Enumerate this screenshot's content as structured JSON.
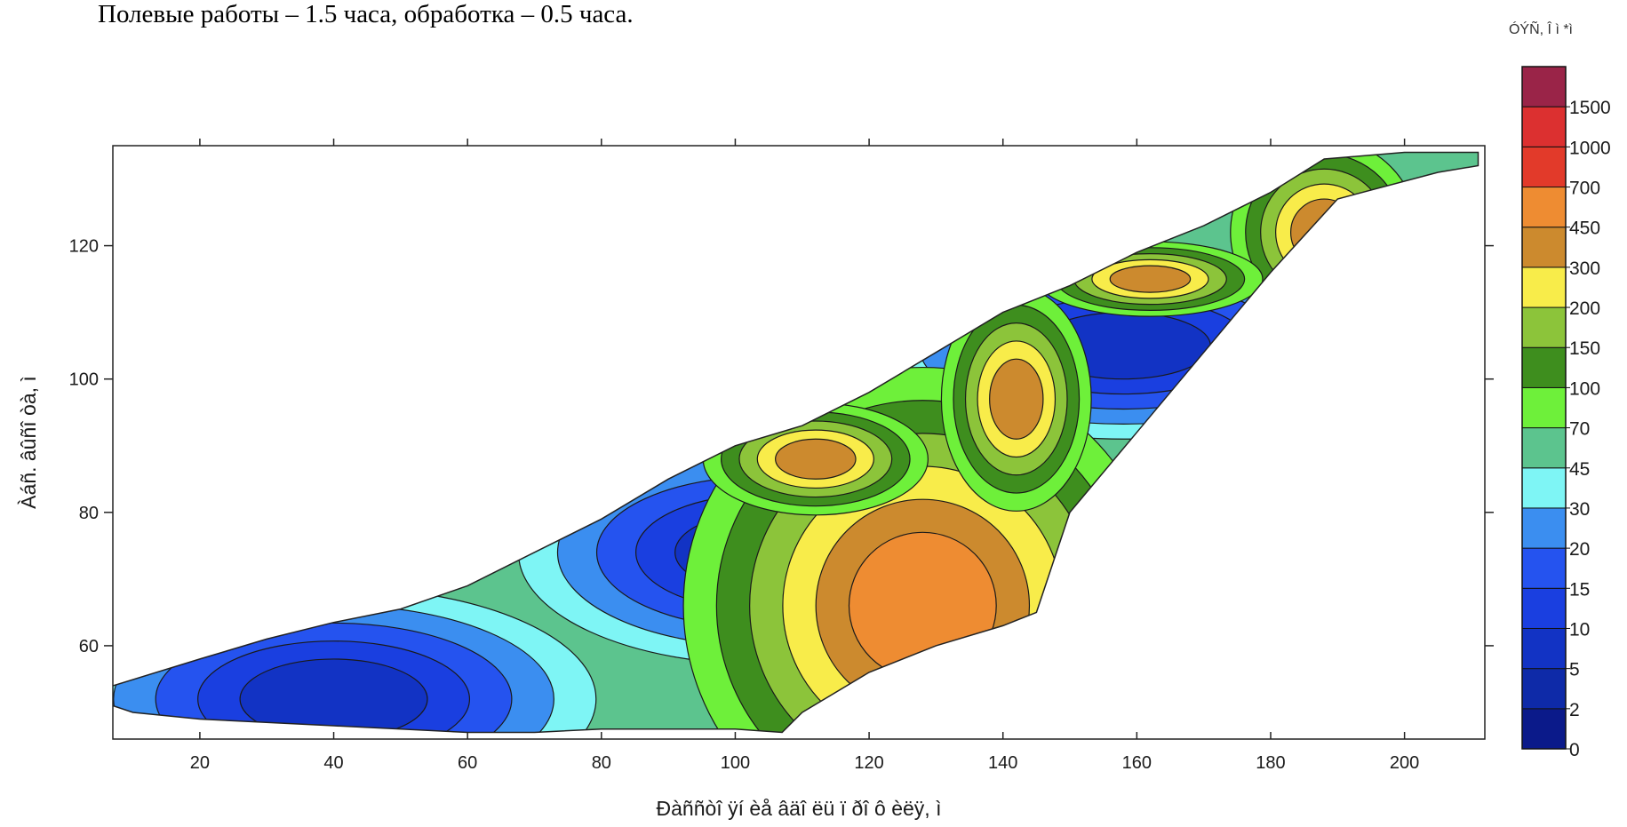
{
  "caption": "Полевые работы – 1.5 часа, обработка – 0.5 часа.",
  "chart_data": {
    "type": "heatmap",
    "xlabel": "Ðàññòî ÿí èå âäî ëü ï ðî ô èëÿ, ì",
    "ylabel": "Àáñ. âûñî òà, ì",
    "colorbar_title": "ÓÝÑ, Î ì *ì",
    "xlim": [
      7,
      212
    ],
    "ylim": [
      46,
      135
    ],
    "x_ticks": [
      20,
      40,
      60,
      80,
      100,
      120,
      140,
      160,
      180,
      200
    ],
    "y_ticks": [
      60,
      80,
      100,
      120
    ],
    "grid": false,
    "color_levels": [
      {
        "value": 0,
        "label": "0",
        "color": "#0b1a8a"
      },
      {
        "value": 2,
        "label": "2",
        "color": "#0e2aa8"
      },
      {
        "value": 5,
        "label": "5",
        "color": "#1233c4"
      },
      {
        "value": 10,
        "label": "10",
        "color": "#1a3fe0"
      },
      {
        "value": 15,
        "label": "15",
        "color": "#2553ef"
      },
      {
        "value": 20,
        "label": "20",
        "color": "#3b8ef0"
      },
      {
        "value": 30,
        "label": "30",
        "color": "#7ef5f5"
      },
      {
        "value": 45,
        "label": "45",
        "color": "#5cc48e"
      },
      {
        "value": 70,
        "label": "70",
        "color": "#6ef03a"
      },
      {
        "value": 100,
        "label": "100",
        "color": "#3e8e1e"
      },
      {
        "value": 150,
        "label": "150",
        "color": "#8cc43a"
      },
      {
        "value": 200,
        "label": "200",
        "color": "#f8ec4a"
      },
      {
        "value": 300,
        "label": "300",
        "color": "#cc8a2e"
      },
      {
        "value": 450,
        "label": "450",
        "color": "#ee8c32"
      },
      {
        "value": 700,
        "label": "700",
        "color": "#e23a2a"
      },
      {
        "value": 1000,
        "label": "1000",
        "color": "#dc3030"
      },
      {
        "value": 1500,
        "label": "1500",
        "color": "#9a2448"
      },
      {
        "value": 2000,
        "label": "",
        "color": "#742a80"
      }
    ],
    "section_outline": [
      [
        7,
        54
      ],
      [
        20,
        58
      ],
      [
        30,
        61
      ],
      [
        40,
        63.5
      ],
      [
        50,
        65.5
      ],
      [
        60,
        69
      ],
      [
        70,
        74
      ],
      [
        80,
        79
      ],
      [
        90,
        85
      ],
      [
        100,
        90
      ],
      [
        110,
        93
      ],
      [
        120,
        98
      ],
      [
        130,
        104
      ],
      [
        140,
        110
      ],
      [
        150,
        114
      ],
      [
        160,
        119
      ],
      [
        170,
        123
      ],
      [
        180,
        128
      ],
      [
        188,
        133
      ],
      [
        200,
        134
      ],
      [
        211,
        134
      ],
      [
        211,
        132
      ],
      [
        205,
        131
      ],
      [
        190,
        127
      ],
      [
        180,
        116
      ],
      [
        170,
        104
      ],
      [
        160,
        92
      ],
      [
        150,
        80
      ],
      [
        145,
        65
      ],
      [
        140,
        63
      ],
      [
        130,
        60
      ],
      [
        120,
        56
      ],
      [
        110,
        50
      ],
      [
        107,
        47
      ],
      [
        100,
        47.5
      ],
      [
        90,
        47.5
      ],
      [
        80,
        47.5
      ],
      [
        70,
        47
      ],
      [
        60,
        47
      ],
      [
        40,
        48
      ],
      [
        20,
        49
      ],
      [
        10,
        50
      ],
      [
        7,
        51
      ]
    ],
    "anomalies": [
      {
        "x": 40,
        "y": 52,
        "rx": 14,
        "ry": 6,
        "level_index": 2
      },
      {
        "x": 104,
        "y": 74,
        "rx": 13,
        "ry": 6,
        "level_index": 2
      },
      {
        "x": 158,
        "y": 105,
        "rx": 13,
        "ry": 5,
        "level_index": 2
      },
      {
        "x": 128,
        "y": 66,
        "rx": 11,
        "ry": 11,
        "level_index": 13
      },
      {
        "x": 142,
        "y": 97,
        "rx": 4,
        "ry": 6,
        "level_index": 12
      },
      {
        "x": 188,
        "y": 122,
        "rx": 5,
        "ry": 5,
        "level_index": 12
      },
      {
        "x": 112,
        "y": 88,
        "rx": 6,
        "ry": 3,
        "level_index": 12
      },
      {
        "x": 162,
        "y": 115,
        "rx": 6,
        "ry": 2,
        "level_index": 12
      }
    ]
  }
}
